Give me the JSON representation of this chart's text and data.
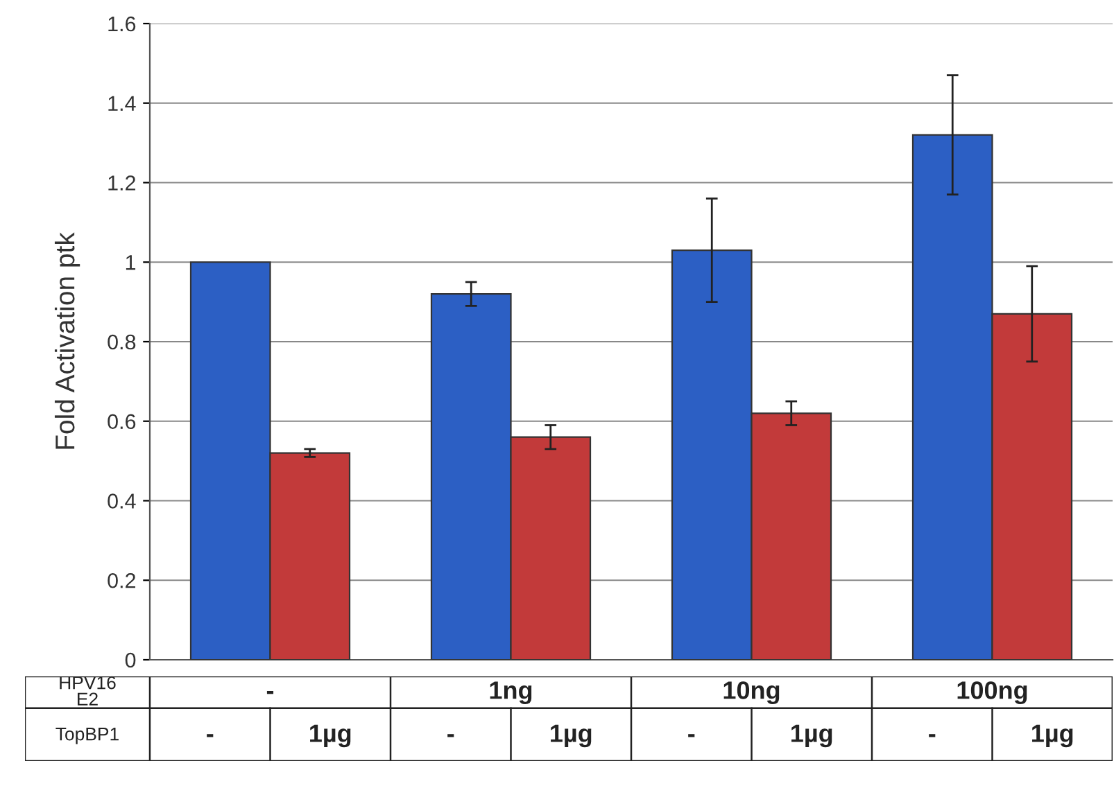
{
  "chart_data": {
    "type": "bar",
    "ylabel": "Fold Activation ptk",
    "categories": [
      "-",
      "1ng",
      "10ng",
      "100ng"
    ],
    "series": [
      {
        "name": "-",
        "color": "#2c5fc4",
        "values": [
          1.0,
          0.92,
          1.03,
          1.32
        ],
        "errors": [
          null,
          0.03,
          0.13,
          0.15
        ]
      },
      {
        "name": "1µg",
        "color": "#c23a3a",
        "values": [
          0.52,
          0.56,
          0.62,
          0.87
        ],
        "errors": [
          0.01,
          0.03,
          0.03,
          0.12
        ]
      }
    ],
    "annotations": [
      "HPV16\nE2",
      "TopBP1"
    ],
    "ylim": [
      0,
      1.6
    ],
    "yticks": [
      0,
      0.2,
      0.4,
      0.6,
      0.8,
      1,
      1.2,
      1.4,
      1.6
    ],
    "grid": "y",
    "legend": false
  }
}
